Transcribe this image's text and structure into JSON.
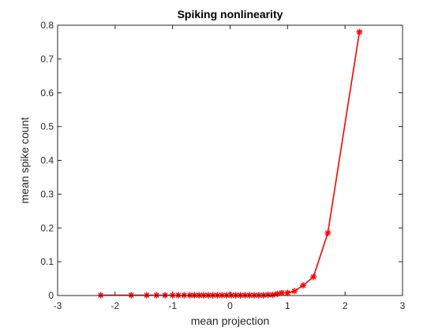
{
  "chart_data": {
    "type": "line",
    "title": "Spiking nonlinearity",
    "xlabel": "mean projection",
    "ylabel": "mean spike count",
    "xlim": [
      -3,
      3
    ],
    "ylim": [
      0,
      0.8
    ],
    "xticks": [
      -3,
      -2,
      -1,
      0,
      1,
      2,
      3
    ],
    "yticks": [
      0,
      0.1,
      0.2,
      0.3,
      0.4,
      0.5,
      0.6,
      0.7,
      0.8
    ],
    "xtick_labels": [
      "-3",
      "-2",
      "-1",
      "0",
      "1",
      "2",
      "3"
    ],
    "ytick_labels": [
      "0",
      "0.1",
      "0.2",
      "0.3",
      "0.4",
      "0.5",
      "0.6",
      "0.7",
      "0.8"
    ],
    "grid": false,
    "series": [
      {
        "color": "#ff0000",
        "marker": "asterisk",
        "x": [
          -2.25,
          -1.72,
          -1.45,
          -1.28,
          -1.13,
          -1.0,
          -0.9,
          -0.8,
          -0.7,
          -0.62,
          -0.54,
          -0.46,
          -0.38,
          -0.3,
          -0.22,
          -0.14,
          -0.06,
          0.02,
          0.1,
          0.18,
          0.26,
          0.34,
          0.42,
          0.5,
          0.58,
          0.66,
          0.74,
          0.82,
          0.9,
          1.0,
          1.12,
          1.27,
          1.45,
          1.7,
          2.25
        ],
        "y": [
          0.001,
          0.001,
          0.001,
          0.001,
          0.001,
          0.001,
          0.001,
          0.001,
          0.001,
          0.001,
          0.001,
          0.001,
          0.001,
          0.001,
          0.001,
          0.001,
          0.001,
          0.001,
          0.001,
          0.001,
          0.001,
          0.001,
          0.001,
          0.001,
          0.001,
          0.002,
          0.002,
          0.005,
          0.008,
          0.008,
          0.013,
          0.03,
          0.055,
          0.185,
          0.78
        ]
      }
    ]
  }
}
